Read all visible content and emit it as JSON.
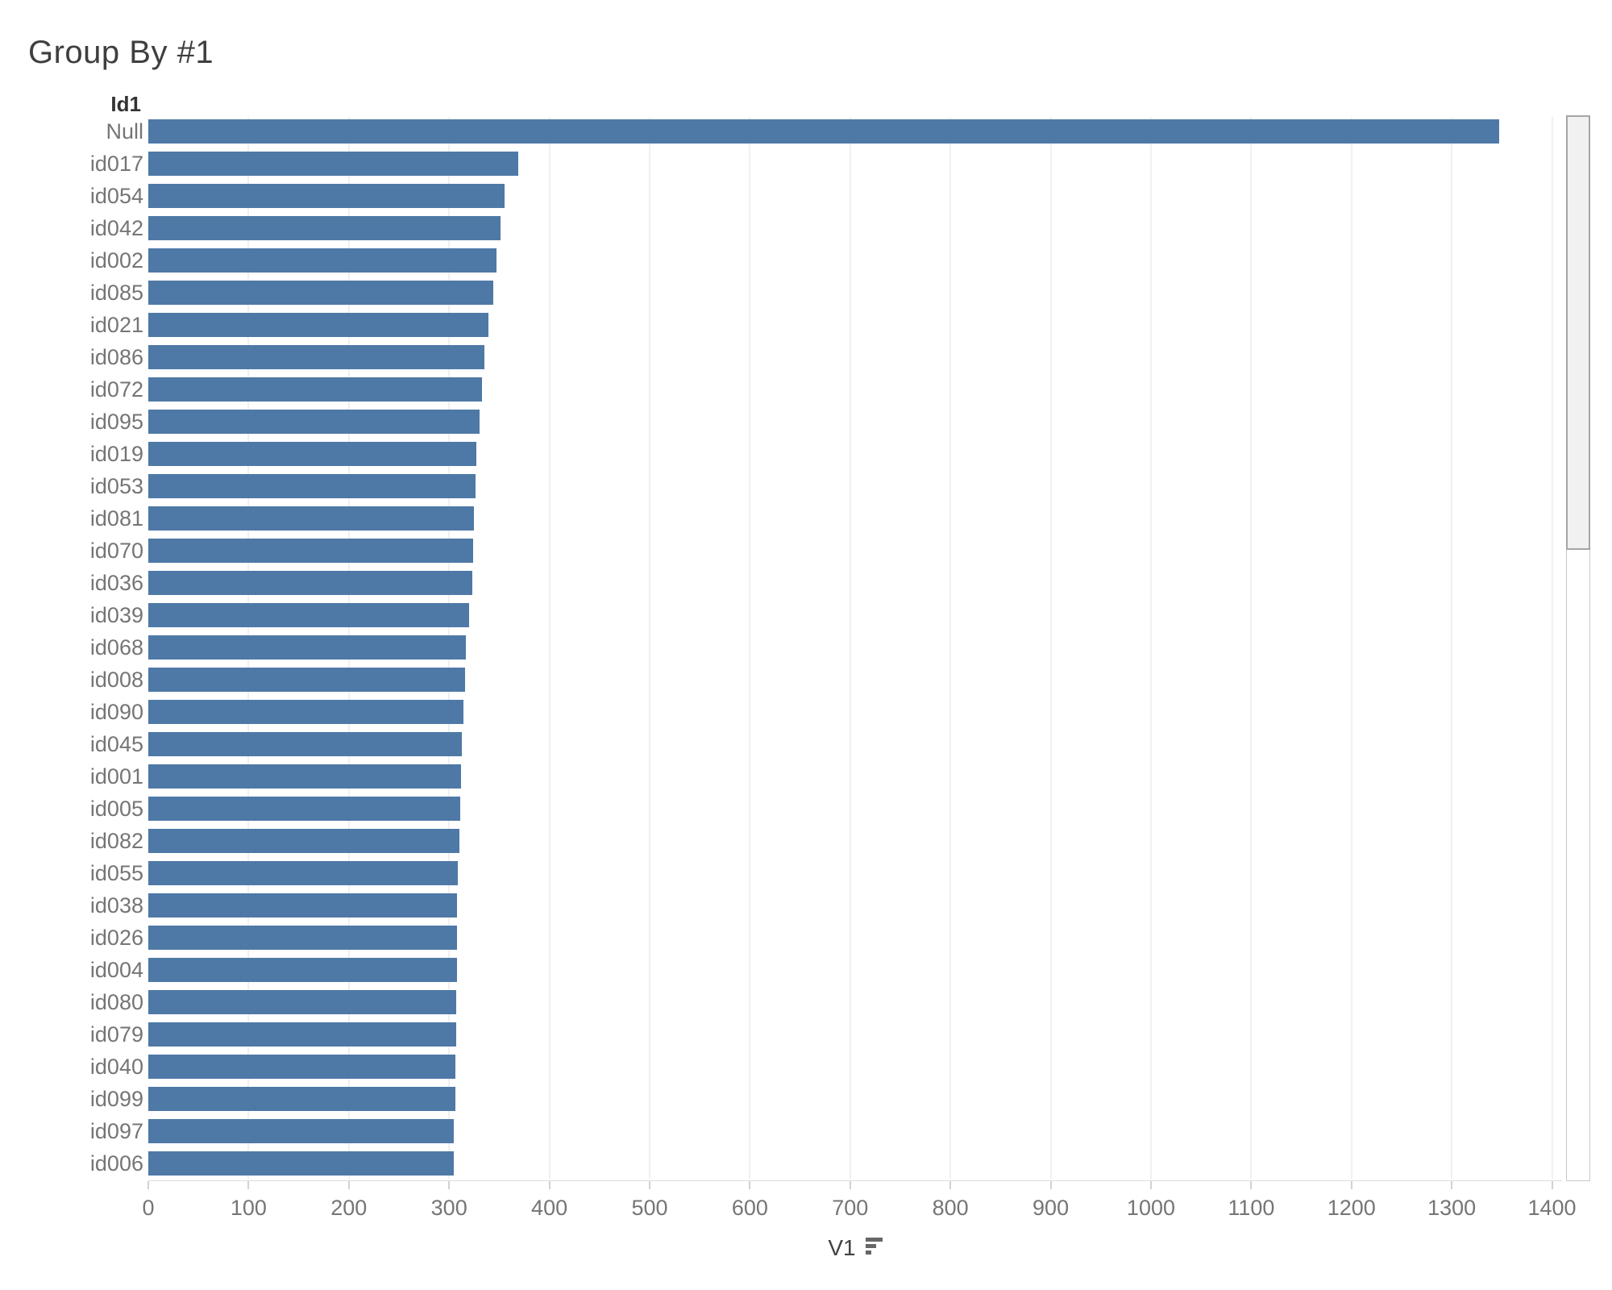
{
  "title": "Group By #1",
  "colors": {
    "bar": "#4e79a7",
    "grid": "#f0f0f0",
    "axis_line": "#dcdcdc",
    "tick": "#d2d2d2",
    "tick_label": "#757575",
    "category_label": "#757575",
    "row_header": "#333333",
    "title": "#3f3f3f",
    "axis_title": "#424242",
    "sort_icon": "#666666",
    "scrollbar_thumb_fill": "#f1f1f1",
    "scrollbar_thumb_border": "#a5a5a5",
    "scrollbar_track_border": "#c9c9c9"
  },
  "chart_data": {
    "type": "bar",
    "orientation": "horizontal",
    "title": "Group By #1",
    "xlabel": "V1",
    "ylabel": "Id1",
    "sort": "descending",
    "grid": true,
    "xlim": [
      0,
      1410
    ],
    "axis_ticks": [
      0,
      100,
      200,
      300,
      400,
      500,
      600,
      700,
      800,
      900,
      1000,
      1100,
      1200,
      1300,
      1400
    ],
    "categories": [
      "Null",
      "id017",
      "id054",
      "id042",
      "id002",
      "id085",
      "id021",
      "id086",
      "id072",
      "id095",
      "id019",
      "id053",
      "id081",
      "id070",
      "id036",
      "id039",
      "id068",
      "id008",
      "id090",
      "id045",
      "id001",
      "id005",
      "id082",
      "id055",
      "id038",
      "id026",
      "id004",
      "id080",
      "id079",
      "id040",
      "id099",
      "id097",
      "id006"
    ],
    "values": [
      1347,
      369,
      355,
      351,
      347,
      344,
      339,
      335,
      333,
      330,
      327,
      326,
      325,
      324,
      323,
      320,
      317,
      316,
      314,
      313,
      312,
      311,
      310,
      309,
      308,
      308,
      308,
      307,
      307,
      306,
      306,
      305,
      305
    ]
  }
}
